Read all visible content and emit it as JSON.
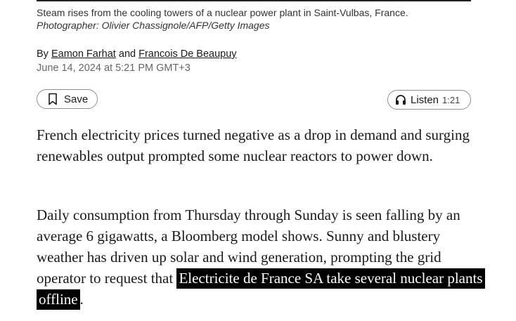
{
  "caption": {
    "text": "Steam rises from the cooling towers of a nuclear power plant in Saint-Vulbas, France. ",
    "credit": "Photographer: Olivier Chassignole/AFP/Getty Images"
  },
  "byline": {
    "prefix": "By",
    "author1": "Eamon Farhat",
    "joiner": "and",
    "author2": "Francois De Beaupuy"
  },
  "dateline": "June 14, 2024 at 5:21 PM GMT+3",
  "actions": {
    "save_label": "Save",
    "save_icon": "bookmark-icon",
    "listen_label": "Listen",
    "listen_duration": "1:21",
    "listen_icon": "headphones-icon"
  },
  "article": {
    "paragraph1": "French electricity prices turned negative as a drop in demand and surging renewables output prompted some nuclear reactors to power down.",
    "paragraph2_text": "Daily consumption from Thursday through Sunday is seen falling by an average 6 gigawatts, a Bloomberg model shows. Sunny and blustery weather has driven up solar and wind generation, prompting the grid operator to request that ",
    "paragraph2_link": "Electricite de France SA take several nuclear plants offline",
    "paragraph2_end": "."
  },
  "colors": {
    "text": "#1a1a1a",
    "muted": "#666666",
    "highlight_bg": "#000000",
    "highlight_text": "#ffffff",
    "pill_border": "#8f8f8f"
  }
}
